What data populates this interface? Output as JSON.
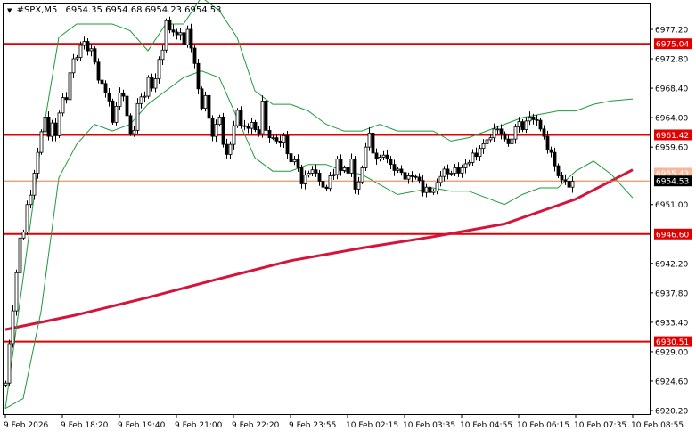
{
  "colors": {
    "background": "#ffffff",
    "candle": "#000000",
    "bollinger": "#1e9a3c",
    "moving_average": "#d4143c",
    "level_line": "#e00000",
    "level_label_bg": "#e00000",
    "price_label_bg": "#000000",
    "current_line": "#f07840",
    "grid": "#c8c8c8",
    "axis_text": "#000000"
  },
  "header": {
    "symbol_label": "#SPX,M5",
    "ohlc_text": "6954.35 6954.68 6954.23 6954.53"
  },
  "chart_data": {
    "type": "candlestick",
    "symbol": "#SPX",
    "timeframe": "M5",
    "ylim": [
      6920.2,
      6981.2
    ],
    "y_ticks": [
      {
        "value": 6977.2,
        "label": "6977.20"
      },
      {
        "value": 6972.8,
        "label": "6972.80"
      },
      {
        "value": 6968.4,
        "label": "6968.40"
      },
      {
        "value": 6964.0,
        "label": "6964.00"
      },
      {
        "value": 6959.6,
        "label": "6959.60"
      },
      {
        "value": 6951.0,
        "label": "6951.00"
      },
      {
        "value": 6942.2,
        "label": "6942.20"
      },
      {
        "value": 6937.8,
        "label": "6937.80"
      },
      {
        "value": 6933.4,
        "label": "6933.40"
      },
      {
        "value": 6929.0,
        "label": "6929.00"
      },
      {
        "value": 6924.6,
        "label": "6924.60"
      },
      {
        "value": 6920.2,
        "label": "6920.20"
      }
    ],
    "x_ticks": [
      "9 Feb 2026",
      "9 Feb 18:20",
      "9 Feb 19:40",
      "9 Feb 21:00",
      "9 Feb 22:20",
      "9 Feb 23:55",
      "10 Feb 02:15",
      "10 Feb 03:35",
      "10 Feb 04:55",
      "10 Feb 06:15",
      "10 Feb 07:35",
      "10 Feb 08:55"
    ],
    "session_separator_at": "9 Feb 23:55",
    "levels": [
      {
        "value": 6975.04,
        "label": "6975.04"
      },
      {
        "value": 6961.42,
        "label": "6961.42"
      },
      {
        "value": 6946.6,
        "label": "6946.60"
      },
      {
        "value": 6930.51,
        "label": "6930.51"
      }
    ],
    "hidden_level_label": "6955.43",
    "current_price": {
      "value": 6954.53,
      "label": "6954.53"
    },
    "ma_series": {
      "x": [
        0,
        20,
        40,
        60,
        80,
        100,
        120,
        140,
        160,
        168,
        176
      ],
      "y": [
        6932.3,
        6934.5,
        6937.1,
        6939.9,
        6942.6,
        6944.5,
        6946.2,
        6948.1,
        6951.8,
        6954.0,
        6956.2
      ]
    },
    "bb_upper": {
      "x": [
        0,
        5,
        10,
        15,
        20,
        25,
        30,
        35,
        40,
        45,
        50,
        55,
        60,
        65,
        70,
        75,
        80,
        85,
        90,
        95,
        100,
        105,
        110,
        115,
        120,
        125,
        130,
        135,
        140,
        145,
        150,
        155,
        160,
        165,
        170,
        176
      ],
      "y": [
        6920.5,
        6940,
        6960,
        6976,
        6978,
        6978,
        6978,
        6977,
        6974,
        6978,
        6978,
        6982,
        6980,
        6976,
        6968,
        6966,
        6966,
        6965,
        6963,
        6962,
        6962,
        6963,
        6962,
        6962,
        6962,
        6960.5,
        6961,
        6962,
        6963,
        6964,
        6964.5,
        6965,
        6965,
        6966,
        6966.5,
        6966.8
      ]
    },
    "bb_lower": {
      "x": [
        0,
        5,
        10,
        15,
        20,
        25,
        30,
        35,
        40,
        45,
        50,
        55,
        60,
        65,
        70,
        75,
        80,
        85,
        90,
        95,
        100,
        105,
        110,
        115,
        120,
        125,
        130,
        135,
        140,
        145,
        150,
        155,
        160,
        165,
        170,
        176
      ],
      "y": [
        6920.5,
        6922,
        6935,
        6955,
        6960,
        6963,
        6962,
        6963,
        6966,
        6968,
        6970,
        6971,
        6970,
        6964,
        6958,
        6956,
        6956,
        6957,
        6957,
        6956,
        6955.5,
        6954,
        6952.5,
        6953,
        6953.5,
        6953,
        6953,
        6952,
        6951,
        6952.5,
        6953.5,
        6953.5,
        6956,
        6957.5,
        6955.5,
        6952
      ]
    },
    "candles": {
      "close": [
        6924.3,
        6930.2,
        6935.1,
        6940.8,
        6946.0,
        6946.9,
        6951.0,
        6952.4,
        6955.7,
        6958.8,
        6961.9,
        6964.1,
        6961.2,
        6963.2,
        6961.3,
        6964.7,
        6967.0,
        6966.7,
        6970.7,
        6972.8,
        6973.0,
        6974.8,
        6975.4,
        6974.0,
        6974.3,
        6972.3,
        6969.6,
        6969.1,
        6967.7,
        6966.5,
        6963.3,
        6965.7,
        6967.7,
        6967.2,
        6964.3,
        6961.6,
        6962.1,
        6966.1,
        6967.1,
        6967.2,
        6970.0,
        6968.4,
        6969.8,
        6972.7,
        6974.1,
        6978.5,
        6977.1,
        6976.8,
        6976.4,
        6976.7,
        6974.9,
        6977.2,
        6974.4,
        6972.1,
        6968.3,
        6965.4,
        6967.3,
        6963.9,
        6961.2,
        6963.0,
        6964.1,
        6960.0,
        6958.5,
        6960.0,
        6962.8,
        6965.1,
        6962.8,
        6962.7,
        6962.4,
        6963.3,
        6962.2,
        6961.6,
        6966.5,
        6962.1,
        6961.0,
        6961.0,
        6960.5,
        6960.2,
        6961.3,
        6958.6,
        6957.4,
        6957.7,
        6956.5,
        6954.1,
        6955.4,
        6955.7,
        6956.2,
        6955.7,
        6954.5,
        6953.6,
        6953.4,
        6955.3,
        6955.5,
        6957.8,
        6956.1,
        6956.5,
        6955.7,
        6957.8,
        6953.3,
        6954.4,
        6956.5,
        6959.6,
        6961.7,
        6958.7,
        6957.8,
        6958.1,
        6958.4,
        6957.8,
        6957.0,
        6956.1,
        6956.3,
        6955.8,
        6954.8,
        6955.3,
        6955.2,
        6955.1,
        6954.6,
        6952.8,
        6953.6,
        6952.8,
        6953.0,
        6954.3,
        6955.2,
        6956.3,
        6955.6,
        6955.7,
        6956.5,
        6955.7,
        6956.5,
        6957.1,
        6957.3,
        6958.7,
        6958.2,
        6959.4,
        6960.1,
        6960.7,
        6961.0,
        6962.3,
        6962.3,
        6961.6,
        6960.8,
        6960.1,
        6960.8,
        6962.6,
        6963.4,
        6962.2,
        6963.5,
        6964.1,
        6963.7,
        6963.6,
        6962.3,
        6961.2,
        6959.2,
        6958.8,
        6956.8,
        6955.3,
        6954.7,
        6954.5,
        6953.6,
        6954.5
      ]
    }
  }
}
